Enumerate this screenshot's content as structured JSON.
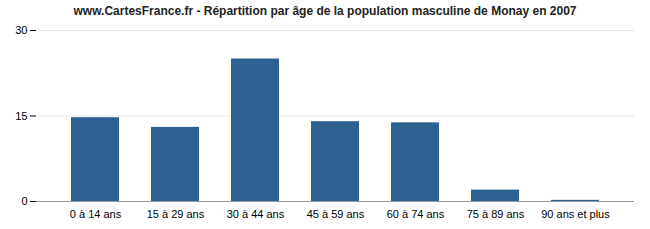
{
  "chart_data": {
    "type": "bar",
    "title": "www.CartesFrance.fr - Répartition par âge de la population masculine de Monay en 2007",
    "categories": [
      "0 à 14 ans",
      "15 à 29 ans",
      "30 à 44 ans",
      "45 à 59 ans",
      "60 à 74 ans",
      "75 à 89 ans",
      "90 ans et plus"
    ],
    "values": [
      14.7,
      13.0,
      25.0,
      14.0,
      13.8,
      2.0,
      0.2
    ],
    "color": "#2e6090",
    "ylim": [
      0,
      30
    ],
    "yticks": [
      0,
      15,
      30
    ],
    "grid": true
  }
}
